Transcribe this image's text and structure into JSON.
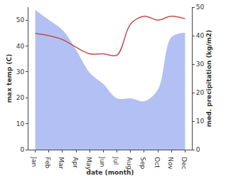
{
  "chart_data": {
    "type": "line",
    "xlabel": "date (month)",
    "ylabel": "max temp (C)",
    "y2label": "med. precipitation (kg/m2)",
    "categories": [
      "Jan",
      "Feb",
      "Mar",
      "Apr",
      "May",
      "Jun",
      "Jul",
      "Aug",
      "Sep",
      "Oct",
      "Nov",
      "Dec"
    ],
    "series": [
      {
        "name": "max temp",
        "type": "line",
        "color": "#c0504d",
        "values": [
          44.8,
          44,
          42.5,
          39.5,
          37,
          37,
          36.5,
          48.5,
          51.5,
          50,
          51.5,
          50.5
        ]
      },
      {
        "name": "med. precipitation",
        "type": "area",
        "axis": "y2",
        "color": "#b3c0f4",
        "values": [
          49,
          45.5,
          42,
          35,
          27,
          23,
          18,
          18,
          17,
          21,
          39.5,
          41
        ]
      }
    ],
    "ylim": [
      0,
      55
    ],
    "yticks": [
      0,
      10,
      20,
      30,
      40,
      50
    ],
    "y2lim": [
      0,
      50
    ],
    "y2ticks": [
      0,
      10,
      20,
      30,
      40,
      50
    ],
    "grid": false
  }
}
